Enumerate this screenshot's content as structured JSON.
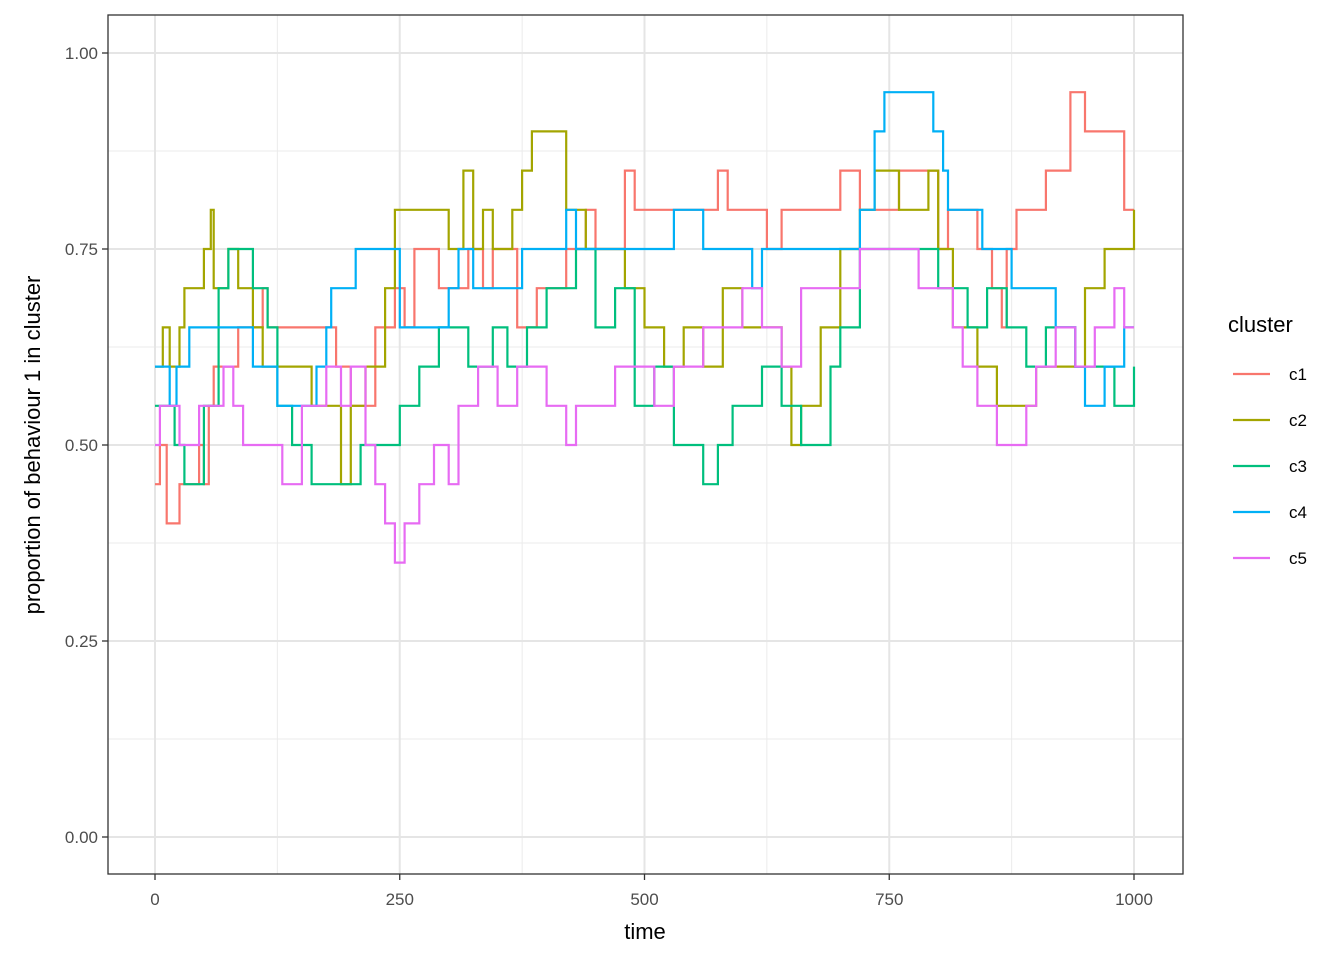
{
  "chart_data": {
    "type": "line",
    "title": "",
    "xlabel": "time",
    "ylabel": "proportion of behaviour 1 in cluster",
    "xlim": [
      -48,
      1048
    ],
    "ylim": [
      -0.048,
      1.048
    ],
    "x_ticks": [
      0,
      250,
      500,
      750,
      1000
    ],
    "x_tick_labels": [
      "0",
      "250",
      "500",
      "750",
      "1000"
    ],
    "y_ticks": [
      0.0,
      0.25,
      0.5,
      0.75,
      1.0
    ],
    "y_tick_labels": [
      "0.00",
      "0.25",
      "0.50",
      "0.75",
      "1.00"
    ],
    "grid": true,
    "legend_position": "right",
    "legend_title": "cluster",
    "step": true,
    "series": [
      {
        "name": "c1",
        "color": "#F8766D",
        "points": [
          [
            0,
            0.45
          ],
          [
            5,
            0.5
          ],
          [
            12,
            0.4
          ],
          [
            25,
            0.45
          ],
          [
            45,
            0.5
          ],
          [
            50,
            0.45
          ],
          [
            55,
            0.55
          ],
          [
            60,
            0.6
          ],
          [
            85,
            0.65
          ],
          [
            110,
            0.7
          ],
          [
            115,
            0.65
          ],
          [
            185,
            0.6
          ],
          [
            200,
            0.55
          ],
          [
            225,
            0.65
          ],
          [
            245,
            0.7
          ],
          [
            255,
            0.65
          ],
          [
            265,
            0.75
          ],
          [
            290,
            0.7
          ],
          [
            320,
            0.75
          ],
          [
            335,
            0.7
          ],
          [
            345,
            0.75
          ],
          [
            370,
            0.65
          ],
          [
            390,
            0.7
          ],
          [
            420,
            0.75
          ],
          [
            440,
            0.8
          ],
          [
            450,
            0.75
          ],
          [
            480,
            0.85
          ],
          [
            490,
            0.8
          ],
          [
            570,
            0.8
          ],
          [
            575,
            0.85
          ],
          [
            585,
            0.8
          ],
          [
            625,
            0.75
          ],
          [
            640,
            0.8
          ],
          [
            700,
            0.85
          ],
          [
            720,
            0.8
          ],
          [
            760,
            0.85
          ],
          [
            800,
            0.75
          ],
          [
            810,
            0.8
          ],
          [
            840,
            0.75
          ],
          [
            855,
            0.7
          ],
          [
            865,
            0.65
          ],
          [
            870,
            0.75
          ],
          [
            880,
            0.8
          ],
          [
            910,
            0.85
          ],
          [
            935,
            0.95
          ],
          [
            950,
            0.9
          ],
          [
            990,
            0.8
          ],
          [
            1000,
            0.8
          ]
        ]
      },
      {
        "name": "c2",
        "color": "#A3A500",
        "points": [
          [
            0,
            0.6
          ],
          [
            8,
            0.65
          ],
          [
            15,
            0.6
          ],
          [
            25,
            0.65
          ],
          [
            30,
            0.7
          ],
          [
            50,
            0.75
          ],
          [
            57,
            0.8
          ],
          [
            60,
            0.7
          ],
          [
            75,
            0.75
          ],
          [
            85,
            0.7
          ],
          [
            100,
            0.65
          ],
          [
            110,
            0.6
          ],
          [
            160,
            0.55
          ],
          [
            190,
            0.45
          ],
          [
            200,
            0.55
          ],
          [
            215,
            0.6
          ],
          [
            235,
            0.7
          ],
          [
            245,
            0.8
          ],
          [
            300,
            0.75
          ],
          [
            315,
            0.85
          ],
          [
            325,
            0.75
          ],
          [
            335,
            0.8
          ],
          [
            345,
            0.75
          ],
          [
            365,
            0.8
          ],
          [
            375,
            0.85
          ],
          [
            385,
            0.9
          ],
          [
            400,
            0.9
          ],
          [
            420,
            0.8
          ],
          [
            440,
            0.75
          ],
          [
            470,
            0.75
          ],
          [
            480,
            0.7
          ],
          [
            500,
            0.65
          ],
          [
            520,
            0.6
          ],
          [
            540,
            0.65
          ],
          [
            560,
            0.6
          ],
          [
            580,
            0.7
          ],
          [
            600,
            0.65
          ],
          [
            640,
            0.6
          ],
          [
            650,
            0.5
          ],
          [
            660,
            0.55
          ],
          [
            680,
            0.65
          ],
          [
            700,
            0.75
          ],
          [
            720,
            0.8
          ],
          [
            735,
            0.85
          ],
          [
            760,
            0.8
          ],
          [
            790,
            0.85
          ],
          [
            800,
            0.75
          ],
          [
            815,
            0.65
          ],
          [
            840,
            0.6
          ],
          [
            860,
            0.55
          ],
          [
            900,
            0.6
          ],
          [
            930,
            0.6
          ],
          [
            950,
            0.7
          ],
          [
            970,
            0.75
          ],
          [
            1000,
            0.8
          ]
        ]
      },
      {
        "name": "c3",
        "color": "#00BF7D",
        "points": [
          [
            0,
            0.55
          ],
          [
            20,
            0.5
          ],
          [
            30,
            0.45
          ],
          [
            50,
            0.55
          ],
          [
            65,
            0.7
          ],
          [
            75,
            0.75
          ],
          [
            100,
            0.7
          ],
          [
            115,
            0.65
          ],
          [
            125,
            0.55
          ],
          [
            140,
            0.5
          ],
          [
            160,
            0.45
          ],
          [
            210,
            0.5
          ],
          [
            230,
            0.5
          ],
          [
            250,
            0.55
          ],
          [
            270,
            0.6
          ],
          [
            290,
            0.65
          ],
          [
            320,
            0.6
          ],
          [
            345,
            0.65
          ],
          [
            360,
            0.6
          ],
          [
            380,
            0.65
          ],
          [
            400,
            0.7
          ],
          [
            430,
            0.75
          ],
          [
            450,
            0.65
          ],
          [
            470,
            0.7
          ],
          [
            490,
            0.55
          ],
          [
            510,
            0.6
          ],
          [
            530,
            0.5
          ],
          [
            560,
            0.45
          ],
          [
            575,
            0.5
          ],
          [
            590,
            0.55
          ],
          [
            620,
            0.6
          ],
          [
            640,
            0.55
          ],
          [
            660,
            0.5
          ],
          [
            690,
            0.6
          ],
          [
            700,
            0.65
          ],
          [
            720,
            0.75
          ],
          [
            800,
            0.7
          ],
          [
            830,
            0.65
          ],
          [
            850,
            0.7
          ],
          [
            870,
            0.65
          ],
          [
            890,
            0.6
          ],
          [
            910,
            0.65
          ],
          [
            940,
            0.6
          ],
          [
            970,
            0.6
          ],
          [
            980,
            0.55
          ],
          [
            1000,
            0.6
          ]
        ]
      },
      {
        "name": "c4",
        "color": "#00B0F6",
        "points": [
          [
            0,
            0.6
          ],
          [
            15,
            0.55
          ],
          [
            22,
            0.6
          ],
          [
            35,
            0.65
          ],
          [
            80,
            0.65
          ],
          [
            100,
            0.6
          ],
          [
            125,
            0.55
          ],
          [
            165,
            0.6
          ],
          [
            175,
            0.65
          ],
          [
            180,
            0.7
          ],
          [
            200,
            0.7
          ],
          [
            205,
            0.75
          ],
          [
            250,
            0.65
          ],
          [
            300,
            0.7
          ],
          [
            310,
            0.75
          ],
          [
            325,
            0.7
          ],
          [
            360,
            0.7
          ],
          [
            375,
            0.75
          ],
          [
            400,
            0.75
          ],
          [
            420,
            0.8
          ],
          [
            430,
            0.75
          ],
          [
            450,
            0.75
          ],
          [
            530,
            0.8
          ],
          [
            560,
            0.75
          ],
          [
            600,
            0.75
          ],
          [
            610,
            0.7
          ],
          [
            620,
            0.75
          ],
          [
            690,
            0.75
          ],
          [
            720,
            0.8
          ],
          [
            735,
            0.9
          ],
          [
            745,
            0.95
          ],
          [
            795,
            0.9
          ],
          [
            805,
            0.85
          ],
          [
            810,
            0.8
          ],
          [
            840,
            0.8
          ],
          [
            845,
            0.75
          ],
          [
            870,
            0.75
          ],
          [
            875,
            0.7
          ],
          [
            900,
            0.7
          ],
          [
            920,
            0.65
          ],
          [
            940,
            0.6
          ],
          [
            950,
            0.55
          ],
          [
            970,
            0.6
          ],
          [
            990,
            0.65
          ],
          [
            1000,
            0.65
          ]
        ]
      },
      {
        "name": "c5",
        "color": "#E76BF3",
        "points": [
          [
            0,
            0.5
          ],
          [
            5,
            0.55
          ],
          [
            20,
            0.55
          ],
          [
            25,
            0.5
          ],
          [
            35,
            0.5
          ],
          [
            45,
            0.55
          ],
          [
            60,
            0.55
          ],
          [
            70,
            0.6
          ],
          [
            80,
            0.55
          ],
          [
            90,
            0.5
          ],
          [
            125,
            0.5
          ],
          [
            130,
            0.45
          ],
          [
            150,
            0.55
          ],
          [
            165,
            0.55
          ],
          [
            175,
            0.6
          ],
          [
            190,
            0.55
          ],
          [
            200,
            0.6
          ],
          [
            215,
            0.5
          ],
          [
            225,
            0.45
          ],
          [
            235,
            0.4
          ],
          [
            245,
            0.35
          ],
          [
            255,
            0.4
          ],
          [
            270,
            0.45
          ],
          [
            285,
            0.5
          ],
          [
            300,
            0.45
          ],
          [
            310,
            0.55
          ],
          [
            330,
            0.6
          ],
          [
            350,
            0.55
          ],
          [
            370,
            0.6
          ],
          [
            380,
            0.6
          ],
          [
            400,
            0.55
          ],
          [
            420,
            0.5
          ],
          [
            430,
            0.55
          ],
          [
            450,
            0.55
          ],
          [
            470,
            0.6
          ],
          [
            490,
            0.6
          ],
          [
            510,
            0.55
          ],
          [
            530,
            0.6
          ],
          [
            550,
            0.6
          ],
          [
            560,
            0.65
          ],
          [
            580,
            0.65
          ],
          [
            600,
            0.7
          ],
          [
            620,
            0.65
          ],
          [
            640,
            0.6
          ],
          [
            660,
            0.7
          ],
          [
            700,
            0.7
          ],
          [
            720,
            0.75
          ],
          [
            760,
            0.75
          ],
          [
            780,
            0.7
          ],
          [
            800,
            0.7
          ],
          [
            815,
            0.65
          ],
          [
            825,
            0.6
          ],
          [
            840,
            0.55
          ],
          [
            860,
            0.5
          ],
          [
            890,
            0.55
          ],
          [
            900,
            0.6
          ],
          [
            920,
            0.65
          ],
          [
            940,
            0.6
          ],
          [
            960,
            0.65
          ],
          [
            980,
            0.7
          ],
          [
            990,
            0.65
          ],
          [
            1000,
            0.65
          ]
        ]
      }
    ]
  }
}
